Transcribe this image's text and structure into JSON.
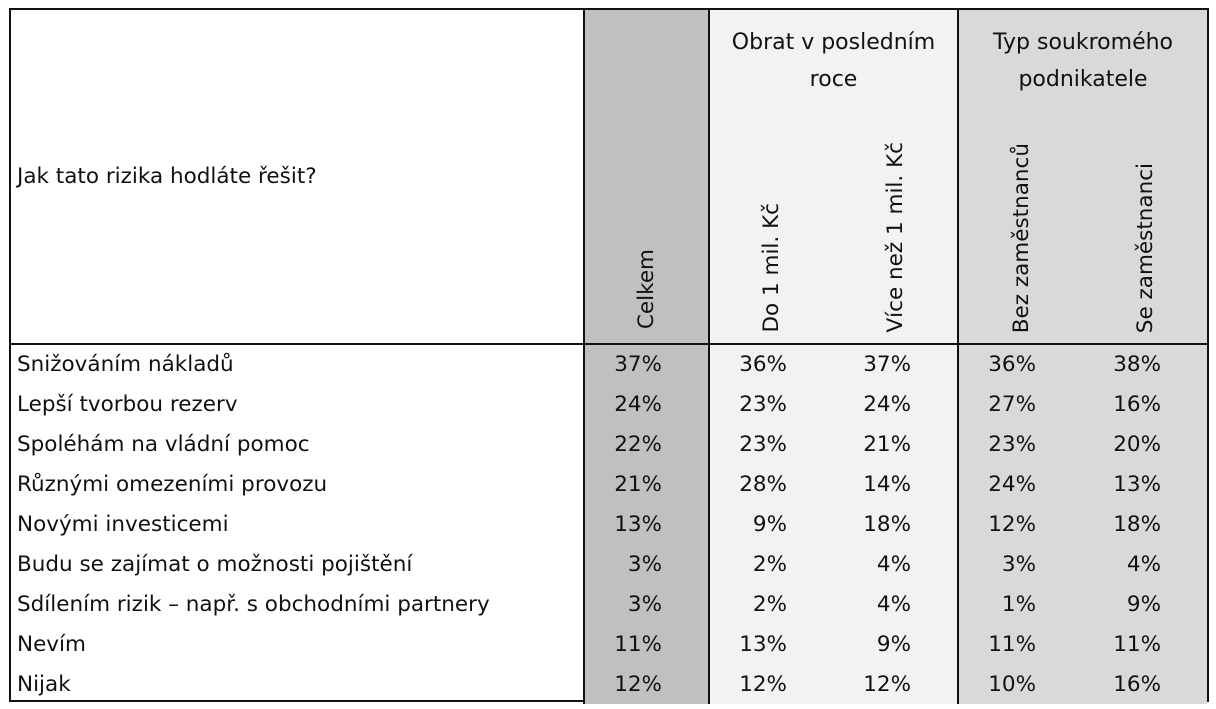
{
  "question": "Jak tato rizika hodláte řešit?",
  "groups": {
    "total": "Celkem",
    "turnover": {
      "title": "Obrat v posledním roce",
      "cols": [
        "Do 1 mil. Kč",
        "Více než 1 mil. Kč"
      ]
    },
    "type": {
      "title": "Typ soukromého podnikatele",
      "cols": [
        "Bez zaměstnanců",
        "Se zaměstnanci"
      ]
    }
  },
  "colors": {
    "total_col": "#c0c0c0",
    "turnover_cols": "#f2f2f2",
    "type_cols": "#d9d9d9",
    "border": "#111111"
  },
  "chart_data": {
    "type": "table",
    "columns": [
      "Celkem",
      "Do 1 mil. Kč",
      "Více než 1 mil. Kč",
      "Bez zaměstnanců",
      "Se zaměstnanci"
    ],
    "rows": [
      {
        "label": "Snižováním nákladů",
        "values": [
          "37%",
          "36%",
          "37%",
          "36%",
          "38%"
        ]
      },
      {
        "label": "Lepší tvorbou rezerv",
        "values": [
          "24%",
          "23%",
          "24%",
          "27%",
          "16%"
        ]
      },
      {
        "label": "Spoléhám na vládní pomoc",
        "values": [
          "22%",
          "23%",
          "21%",
          "23%",
          "20%"
        ]
      },
      {
        "label": "Různými omezeními provozu",
        "values": [
          "21%",
          "28%",
          "14%",
          "24%",
          "13%"
        ]
      },
      {
        "label": "Novými investicemi",
        "values": [
          "13%",
          "9%",
          "18%",
          "12%",
          "18%"
        ]
      },
      {
        "label": "Budu se zajímat o možnosti pojištění",
        "values": [
          "3%",
          "2%",
          "4%",
          "3%",
          "4%"
        ]
      },
      {
        "label": "Sdílením rizik – např. s obchodními partnery",
        "values": [
          "3%",
          "2%",
          "4%",
          "1%",
          "9%"
        ]
      },
      {
        "label": "Nevím",
        "values": [
          "11%",
          "13%",
          "9%",
          "11%",
          "11%"
        ]
      },
      {
        "label": "Nijak",
        "values": [
          "12%",
          "12%",
          "12%",
          "10%",
          "16%"
        ]
      }
    ]
  }
}
